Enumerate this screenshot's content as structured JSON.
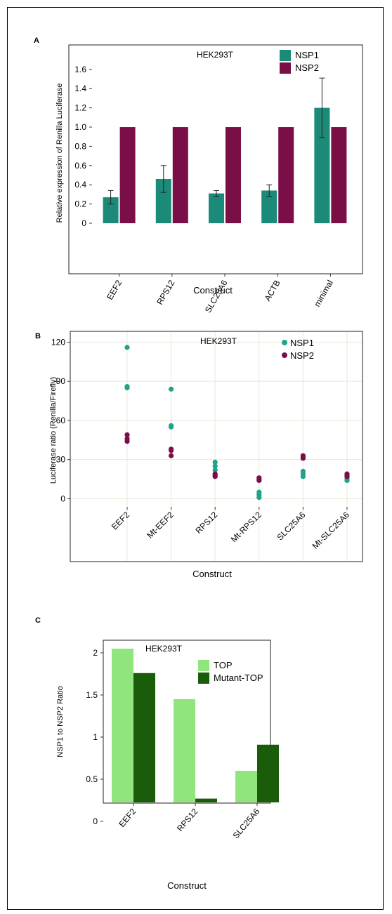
{
  "chart_data": [
    {
      "panel": "A",
      "type": "bar",
      "title": "HEK293T",
      "xlabel": "Construct",
      "ylabel": "Relative expression of  Renilla Luciferase",
      "categories": [
        "EEF2",
        "RPS12",
        "SLC25A6",
        "ACTB",
        "minimal"
      ],
      "series": [
        {
          "name": "NSP1",
          "color": "#1b8a78",
          "values": [
            0.27,
            0.46,
            0.31,
            0.34,
            1.2
          ],
          "error": [
            0.07,
            0.14,
            0.03,
            0.06,
            0.31
          ]
        },
        {
          "name": "NSP2",
          "color": "#7a0f48",
          "values": [
            1.0,
            1.0,
            1.0,
            1.0,
            1.0
          ],
          "error": [
            0,
            0,
            0,
            0,
            0
          ]
        }
      ],
      "yticks": [
        0,
        0.2,
        0.4,
        0.6,
        0.8,
        1.0,
        1.2,
        1.4,
        1.6
      ],
      "ytick_labels": [
        "0",
        "0.2",
        "0.4",
        "0.6",
        "0.8",
        "1.0",
        "1.2",
        "1.4",
        "1.6"
      ],
      "ylim": [
        0,
        1.65
      ],
      "legend": "top-right",
      "grid": false
    },
    {
      "panel": "B",
      "type": "scatter",
      "title": "HEK293T",
      "xlabel": "Construct",
      "ylabel": "Luciferase ratio (Renilla/Firefly)",
      "categories": [
        "EEF2",
        "Mt-EEF2",
        "RPS12",
        "Mt-RPS12",
        "SLC25A6",
        "Mt-SLC25A6"
      ],
      "series": [
        {
          "name": "NSP1",
          "color": "#21a38a",
          "points": [
            [
              "EEF2",
              116
            ],
            [
              "EEF2",
              86
            ],
            [
              "EEF2",
              85
            ],
            [
              "Mt-EEF2",
              84
            ],
            [
              "Mt-EEF2",
              56
            ],
            [
              "Mt-EEF2",
              55
            ],
            [
              "RPS12",
              28
            ],
            [
              "RPS12",
              25
            ],
            [
              "RPS12",
              22
            ],
            [
              "Mt-RPS12",
              5
            ],
            [
              "Mt-RPS12",
              3
            ],
            [
              "Mt-RPS12",
              1
            ],
            [
              "SLC25A6",
              21
            ],
            [
              "SLC25A6",
              19
            ],
            [
              "SLC25A6",
              17
            ],
            [
              "Mt-SLC25A6",
              16
            ],
            [
              "Mt-SLC25A6",
              15
            ],
            [
              "Mt-SLC25A6",
              14
            ]
          ]
        },
        {
          "name": "NSP2",
          "color": "#7a0f48",
          "points": [
            [
              "EEF2",
              49
            ],
            [
              "EEF2",
              46
            ],
            [
              "EEF2",
              44
            ],
            [
              "Mt-EEF2",
              38
            ],
            [
              "Mt-EEF2",
              37
            ],
            [
              "Mt-EEF2",
              33
            ],
            [
              "RPS12",
              19
            ],
            [
              "RPS12",
              18
            ],
            [
              "RPS12",
              17
            ],
            [
              "Mt-RPS12",
              16
            ],
            [
              "Mt-RPS12",
              15
            ],
            [
              "Mt-RPS12",
              14
            ],
            [
              "SLC25A6",
              33
            ],
            [
              "SLC25A6",
              32
            ],
            [
              "SLC25A6",
              31
            ],
            [
              "Mt-SLC25A6",
              19
            ],
            [
              "Mt-SLC25A6",
              18
            ],
            [
              "Mt-SLC25A6",
              17
            ]
          ]
        }
      ],
      "yticks": [
        0,
        30,
        60,
        90,
        120
      ],
      "ylim": [
        -3,
        124
      ],
      "legend": "top-right",
      "grid": true
    },
    {
      "panel": "C",
      "type": "bar",
      "title": "HEK293T",
      "xlabel": "Construct",
      "ylabel": "NSP1 to NSP2 Ratio",
      "categories": [
        "EEF2",
        "RPS12",
        "SLC25A6"
      ],
      "series": [
        {
          "name": "TOP",
          "color": "#90e57c",
          "values": [
            2.05,
            1.45,
            0.6
          ]
        },
        {
          "name": "Mutant-TOP",
          "color": "#1a5c0a",
          "values": [
            1.76,
            0.27,
            0.91
          ]
        }
      ],
      "yticks": [
        0,
        0.5,
        1,
        1.5,
        2
      ],
      "ylim": [
        -0.05,
        2.15
      ],
      "legend": "top-right",
      "grid": false
    }
  ]
}
